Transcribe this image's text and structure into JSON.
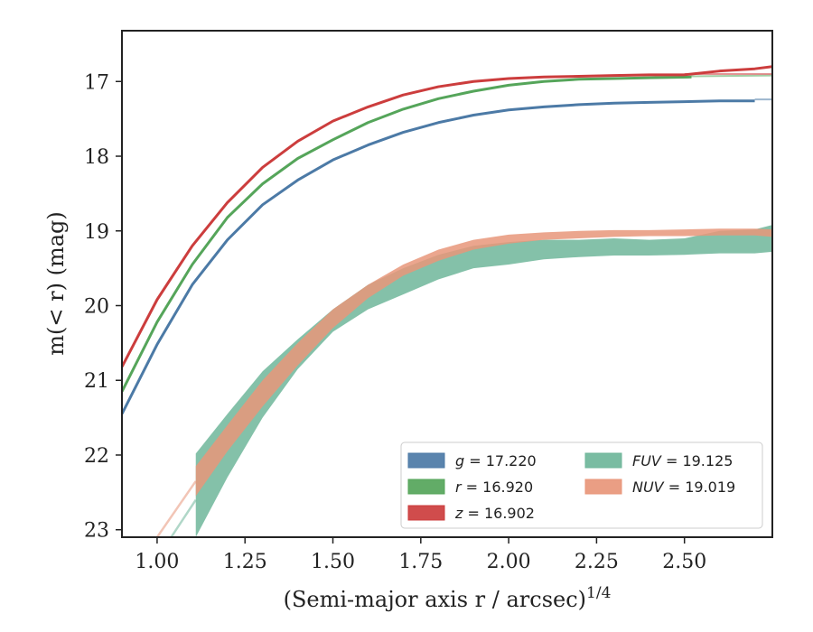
{
  "chart_data": {
    "type": "line",
    "xlabel": "(Semi-major axis r / arcsec)",
    "xlabel_exponent": "1/4",
    "ylabel": "m(< r) (mag)",
    "xlim": [
      0.9,
      2.75
    ],
    "ylim": [
      23.1,
      16.32
    ],
    "y_inverted": true,
    "x_ticks": [
      "1.00",
      "1.25",
      "1.50",
      "1.75",
      "2.00",
      "2.25",
      "2.50"
    ],
    "x_tick_values": [
      1.0,
      1.25,
      1.5,
      1.75,
      2.0,
      2.25,
      2.5
    ],
    "y_ticks": [
      "17",
      "18",
      "19",
      "20",
      "21",
      "22",
      "23"
    ],
    "y_tick_values": [
      17,
      18,
      19,
      20,
      21,
      22,
      23
    ],
    "grid": false,
    "legend_position": "lower-right",
    "series": [
      {
        "name": "g = 17.220",
        "legend_label": "g = 17.220",
        "color": "#4c7aa6",
        "x": [
          0.9,
          1.0,
          1.1,
          1.2,
          1.3,
          1.4,
          1.5,
          1.6,
          1.7,
          1.8,
          1.9,
          2.0,
          2.1,
          2.2,
          2.3,
          2.4,
          2.5,
          2.6,
          2.7
        ],
        "y": [
          21.45,
          20.52,
          19.72,
          19.12,
          18.65,
          18.32,
          18.05,
          17.85,
          17.68,
          17.55,
          17.45,
          17.38,
          17.34,
          17.31,
          17.29,
          17.28,
          17.27,
          17.26,
          17.26
        ],
        "fit_x": [
          2.7,
          2.75
        ],
        "fit_y": [
          17.24,
          17.24
        ]
      },
      {
        "name": "r = 16.920",
        "legend_label": "r = 16.920",
        "color": "#55a55a",
        "x": [
          0.9,
          1.0,
          1.1,
          1.2,
          1.3,
          1.4,
          1.5,
          1.6,
          1.7,
          1.8,
          1.9,
          2.0,
          2.1,
          2.2,
          2.3,
          2.4,
          2.52
        ],
        "y": [
          21.15,
          20.22,
          19.45,
          18.82,
          18.37,
          18.03,
          17.78,
          17.55,
          17.37,
          17.23,
          17.13,
          17.05,
          17.0,
          16.97,
          16.96,
          16.95,
          16.94
        ],
        "fit_x": [
          2.52,
          2.75
        ],
        "fit_y": [
          16.93,
          16.92
        ]
      },
      {
        "name": "z = 16.902",
        "legend_label": "z = 16.902",
        "color": "#cc3d3d",
        "x": [
          0.9,
          1.0,
          1.1,
          1.2,
          1.3,
          1.4,
          1.5,
          1.6,
          1.7,
          1.8,
          1.9,
          2.0,
          2.1,
          2.2,
          2.3,
          2.4,
          2.5,
          2.6,
          2.7,
          2.75
        ],
        "y": [
          20.82,
          19.92,
          19.2,
          18.62,
          18.15,
          17.8,
          17.53,
          17.34,
          17.18,
          17.07,
          17.0,
          16.96,
          16.94,
          16.93,
          16.92,
          16.91,
          16.91,
          16.86,
          16.83,
          16.8
        ],
        "fit_x": [
          2.5,
          2.75
        ],
        "fit_y": [
          16.9,
          16.9
        ]
      },
      {
        "name": "FUV = 19.125",
        "legend_label": "FUV = 19.125",
        "color": "#6fb69a",
        "x": [
          1.11,
          1.2,
          1.3,
          1.4,
          1.5,
          1.6,
          1.7,
          1.8,
          1.9,
          2.0,
          2.1,
          2.2,
          2.3,
          2.4,
          2.5,
          2.6,
          2.7,
          2.75
        ],
        "y_upper": [
          21.98,
          21.45,
          20.88,
          20.45,
          20.05,
          19.72,
          19.5,
          19.32,
          19.2,
          19.15,
          19.12,
          19.12,
          19.1,
          19.12,
          19.1,
          19.0,
          18.98,
          18.92
        ],
        "y_lower": [
          23.1,
          22.3,
          21.5,
          20.85,
          20.35,
          20.05,
          19.85,
          19.65,
          19.5,
          19.45,
          19.38,
          19.35,
          19.33,
          19.33,
          19.32,
          19.3,
          19.3,
          19.28
        ],
        "fit_x": [
          1.04,
          1.11
        ],
        "fit_y": [
          23.1,
          22.6
        ]
      },
      {
        "name": "NUV = 19.019",
        "legend_label": "NUV = 19.019",
        "color": "#e8967a",
        "x": [
          1.11,
          1.2,
          1.3,
          1.4,
          1.5,
          1.6,
          1.7,
          1.8,
          1.9,
          2.0,
          2.1,
          2.2,
          2.3,
          2.4,
          2.5,
          2.6,
          2.7,
          2.75
        ],
        "y_upper": [
          22.15,
          21.6,
          21.0,
          20.5,
          20.05,
          19.72,
          19.45,
          19.25,
          19.12,
          19.05,
          19.02,
          19.0,
          18.99,
          18.99,
          18.98,
          18.97,
          18.97,
          18.98
        ],
        "y_lower": [
          22.55,
          21.95,
          21.35,
          20.8,
          20.3,
          19.9,
          19.6,
          19.4,
          19.25,
          19.17,
          19.12,
          19.1,
          19.08,
          19.07,
          19.07,
          19.06,
          19.06,
          19.08
        ],
        "fit_x": [
          1.0,
          1.11
        ],
        "fit_y": [
          23.1,
          22.35
        ]
      }
    ]
  }
}
